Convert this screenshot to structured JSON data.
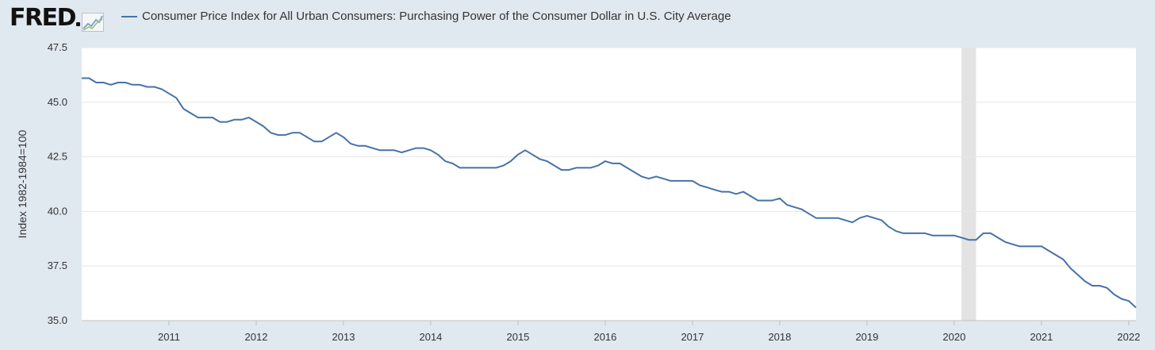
{
  "header": {
    "logo_text": "FRED",
    "logo_icon": "chart-line-icon"
  },
  "chart_data": {
    "type": "line",
    "title": "Consumer Price Index for All Urban Consumers: Purchasing Power of the Consumer Dollar in U.S. City Average",
    "ylabel": "Index 1982-1984=100",
    "xlabel": "",
    "ylim": [
      35.0,
      47.5
    ],
    "y_ticks": [
      "35.0",
      "37.5",
      "40.0",
      "42.5",
      "45.0",
      "47.5"
    ],
    "x_range": [
      2010,
      2022.083
    ],
    "x_ticks": [
      "2011",
      "2012",
      "2013",
      "2014",
      "2015",
      "2016",
      "2017",
      "2018",
      "2019",
      "2020",
      "2021",
      "2022"
    ],
    "recession_shading": [
      {
        "start": 2020.083,
        "end": 2020.25
      }
    ],
    "legend_placement": "top-left",
    "grid": true,
    "series": [
      {
        "name": "Consumer Price Index for All Urban Consumers: Purchasing Power of the Consumer Dollar in U.S. City Average",
        "color": "#4572a7",
        "start_year": 2010,
        "step_months": 1,
        "values": [
          46.1,
          46.1,
          45.9,
          45.9,
          45.8,
          45.9,
          45.9,
          45.8,
          45.8,
          45.7,
          45.7,
          45.6,
          45.4,
          45.2,
          44.7,
          44.5,
          44.3,
          44.3,
          44.3,
          44.1,
          44.1,
          44.2,
          44.2,
          44.3,
          44.1,
          43.9,
          43.6,
          43.5,
          43.5,
          43.6,
          43.6,
          43.4,
          43.2,
          43.2,
          43.4,
          43.6,
          43.4,
          43.1,
          43.0,
          43.0,
          42.9,
          42.8,
          42.8,
          42.8,
          42.7,
          42.8,
          42.9,
          42.9,
          42.8,
          42.6,
          42.3,
          42.2,
          42.0,
          42.0,
          42.0,
          42.0,
          42.0,
          42.0,
          42.1,
          42.3,
          42.6,
          42.8,
          42.6,
          42.4,
          42.3,
          42.1,
          41.9,
          41.9,
          42.0,
          42.0,
          42.0,
          42.1,
          42.3,
          42.2,
          42.2,
          42.0,
          41.8,
          41.6,
          41.5,
          41.6,
          41.5,
          41.4,
          41.4,
          41.4,
          41.4,
          41.2,
          41.1,
          41.0,
          40.9,
          40.9,
          40.8,
          40.9,
          40.7,
          40.5,
          40.5,
          40.5,
          40.6,
          40.3,
          40.2,
          40.1,
          39.9,
          39.7,
          39.7,
          39.7,
          39.7,
          39.6,
          39.5,
          39.7,
          39.8,
          39.7,
          39.6,
          39.3,
          39.1,
          39.0,
          39.0,
          39.0,
          39.0,
          38.9,
          38.9,
          38.9,
          38.9,
          38.8,
          38.7,
          38.7,
          39.0,
          39.0,
          38.8,
          38.6,
          38.5,
          38.4,
          38.4,
          38.4,
          38.4,
          38.2,
          38.0,
          37.8,
          37.4,
          37.1,
          36.8,
          36.6,
          36.6,
          36.5,
          36.2,
          36.0,
          35.9,
          35.6
        ]
      }
    ]
  }
}
